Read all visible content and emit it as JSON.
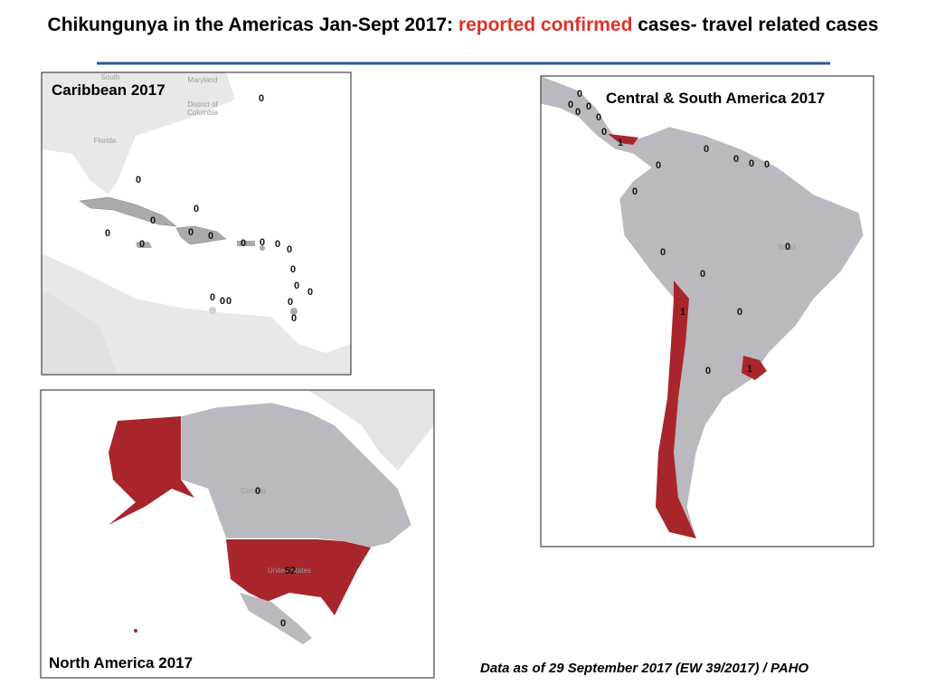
{
  "header": {
    "title_start": "Chikungunya in the Americas Jan-Sept 2017: ",
    "title_highlight": "reported confirmed",
    "title_end": " cases- travel related cases"
  },
  "caribbean": {
    "title": "Caribbean 2017",
    "base_labels": [
      "South",
      "Maryland",
      "District of",
      "Columbia",
      "Florida"
    ],
    "labels": [
      0,
      0,
      0,
      0,
      0,
      0,
      0,
      0,
      0,
      0,
      0,
      0,
      0,
      0,
      0,
      0,
      0,
      0,
      0,
      0
    ]
  },
  "central_south_america": {
    "title": "Central & South America  2017",
    "base_labels": [
      "Brasil"
    ],
    "labels": [
      0,
      0,
      0,
      0,
      0,
      0,
      1,
      0,
      0,
      0,
      0,
      0,
      0,
      0,
      0,
      0,
      0,
      1,
      1,
      0
    ]
  },
  "north_america": {
    "title": "North America  2017",
    "base_labels": [
      "Canada",
      "United States"
    ],
    "labels": [
      0,
      52,
      0
    ]
  },
  "footnote": "Data as of 29 September 2017 (EW 39/2017) / PAHO"
}
